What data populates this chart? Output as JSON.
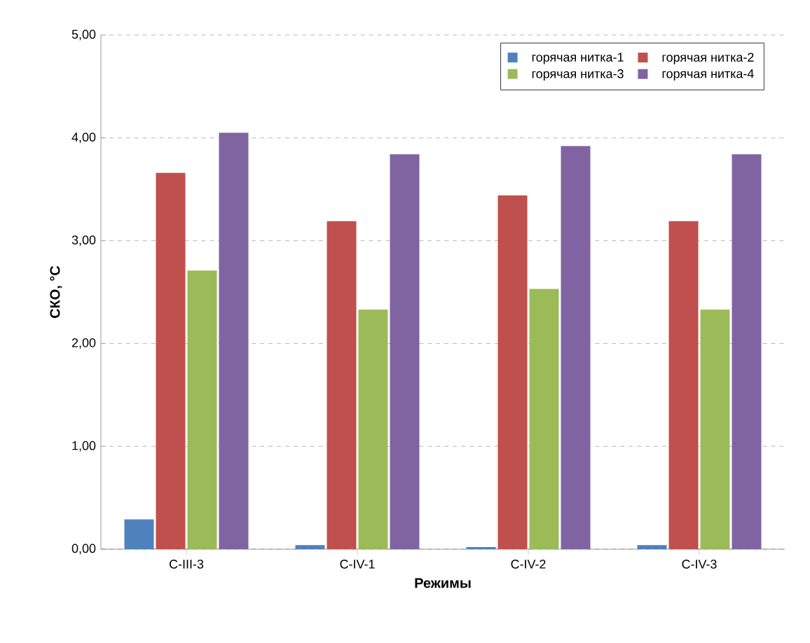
{
  "chart_data": {
    "type": "bar",
    "xlabel": "Режимы",
    "ylabel": "СКО, °С",
    "categories": [
      "С-III-3",
      "С-IV-1",
      "С-IV-2",
      "С-IV-3"
    ],
    "series": [
      {
        "name": "горячая нитка-1",
        "color": "#4f81bd",
        "values": [
          0.29,
          0.04,
          0.02,
          0.04
        ]
      },
      {
        "name": "горячая нитка-2",
        "color": "#c0504d",
        "values": [
          3.66,
          3.19,
          3.44,
          3.19
        ]
      },
      {
        "name": "горячая нитка-3",
        "color": "#9bbb59",
        "values": [
          2.71,
          2.33,
          2.53,
          2.33
        ]
      },
      {
        "name": "горячая нитка-4",
        "color": "#8064a2",
        "values": [
          4.05,
          3.84,
          3.92,
          3.84
        ]
      }
    ],
    "ylim": [
      0,
      5
    ],
    "yticks": [
      {
        "value": 0,
        "label": "0,00"
      },
      {
        "value": 1,
        "label": "1,00"
      },
      {
        "value": 2,
        "label": "2,00"
      },
      {
        "value": 3,
        "label": "3,00"
      },
      {
        "value": 4,
        "label": "4,00"
      },
      {
        "value": 5,
        "label": "5,00"
      }
    ],
    "grid": "y",
    "legend": "top right"
  }
}
